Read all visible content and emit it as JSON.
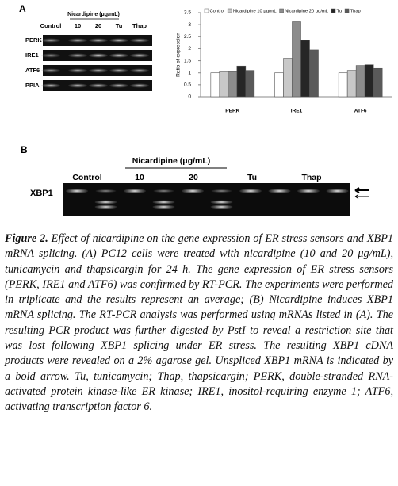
{
  "panel_a": {
    "label": "A",
    "gel": {
      "header": "Nicardipine (μg/mL)",
      "lanes": [
        "Control",
        "10",
        "20",
        "Tu",
        "Thap"
      ],
      "rows": [
        "PERK",
        "IRE1",
        "ATF6",
        "PPIA"
      ]
    }
  },
  "chart_data": {
    "type": "bar",
    "y_label": "Ratio of expression",
    "categories": [
      "PERK",
      "IRE1",
      "ATF6"
    ],
    "series": [
      {
        "name": "Control",
        "color": "#ffffff",
        "values": [
          1,
          1,
          1
        ]
      },
      {
        "name": "Nicardipine 10 μg/mL",
        "color": "#c8c8c8",
        "values": [
          1.05,
          1.6,
          1.1
        ]
      },
      {
        "name": "Nicardipine 20 μg/mL",
        "color": "#8c8c8c",
        "values": [
          1.05,
          3.12,
          1.3
        ]
      },
      {
        "name": "Tu",
        "color": "#262626",
        "values": [
          1.28,
          2.35,
          1.33
        ]
      },
      {
        "name": "Thap",
        "color": "#5a5a5a",
        "values": [
          1.1,
          1.95,
          1.18
        ]
      }
    ],
    "ylim": [
      0,
      3.5
    ],
    "yticks": [
      0,
      0.5,
      1,
      1.5,
      2,
      2.5,
      3,
      3.5
    ],
    "grid": false
  },
  "panel_b": {
    "label": "B",
    "header": "Nicardipine (μg/mL)",
    "lanes": [
      "Control",
      "10",
      "20",
      "Tu",
      "Thap"
    ],
    "row": "XBP1"
  },
  "caption": {
    "label": "Figure 2.",
    "text": " Effect of nicardipine on the gene expression of ER stress sensors and XBP1 mRNA splicing. (A) PC12 cells were treated with nicardipine (10 and 20 μg/mL), tunicamycin and thapsicargin for 24 h. The gene expression of ER stress sensors (PERK, IRE1 and ATF6) was confirmed by RT-PCR. The experiments were performed in triplicate and the results represent an average; (B) Nicardipine induces XBP1 mRNA splicing. The RT-PCR analysis was performed using mRNAs listed in (A). The resulting PCR product was further digested by PstI to reveal a restriction site that was lost following XBP1 splicing under ER stress. The resulting XBP1 cDNA products were revealed on a 2% agarose gel. Unspliced XBP1 mRNA is indicated by a bold arrow. Tu, tunicamycin; Thap, thapsicargin; PERK, double-stranded RNA-activated protein kinase-like ER kinase; IRE1, inositol-requiring enzyme 1; ATF6, activating transcription factor 6."
  }
}
